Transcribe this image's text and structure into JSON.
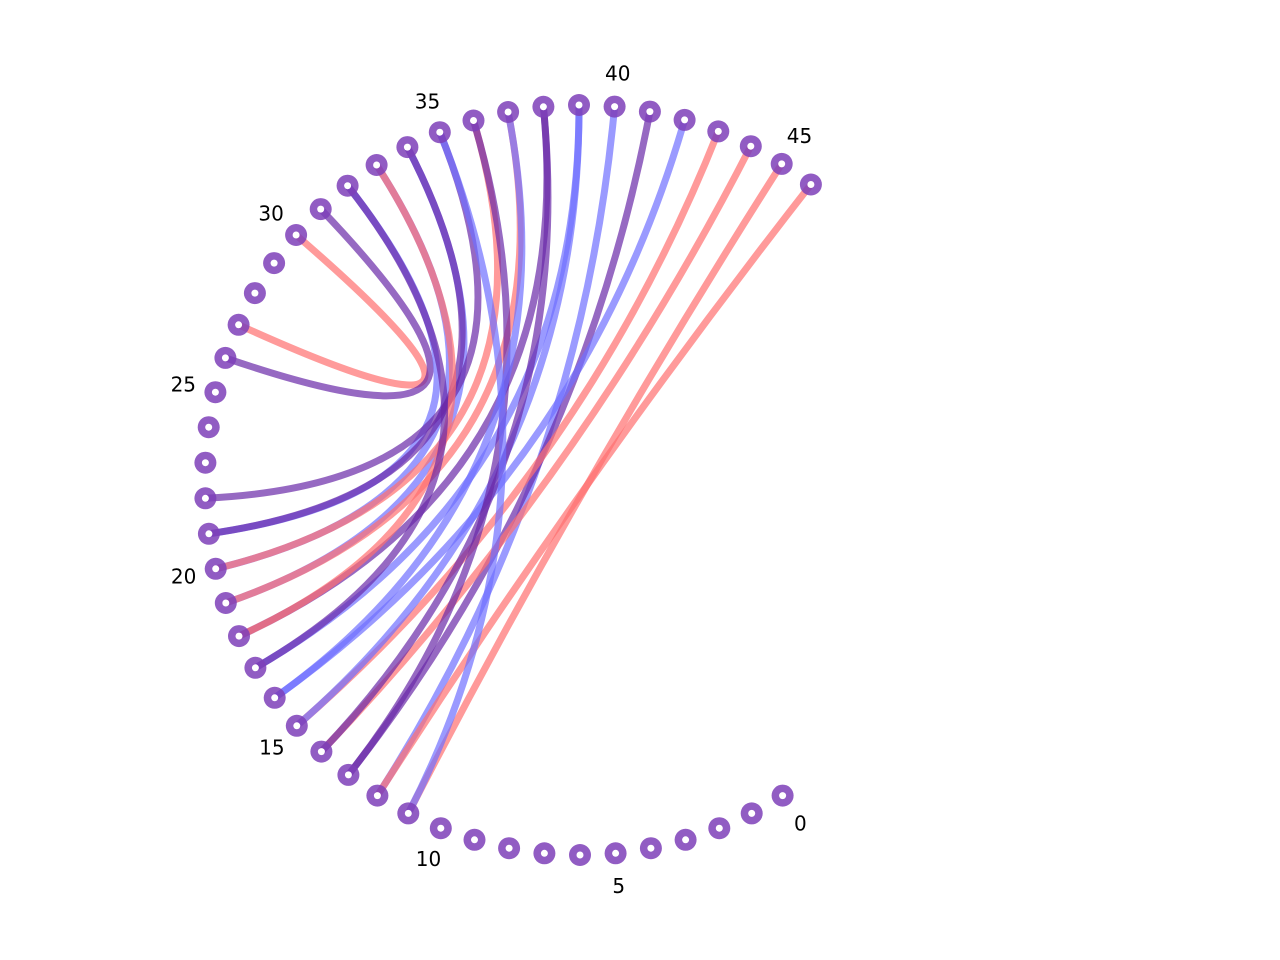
{
  "diagram": {
    "type": "arc-diagram",
    "node_count": 47,
    "tick_labels": [
      {
        "node": 0,
        "text": "0"
      },
      {
        "node": 5,
        "text": "5"
      },
      {
        "node": 10,
        "text": "10"
      },
      {
        "node": 15,
        "text": "15"
      },
      {
        "node": 20,
        "text": "20"
      },
      {
        "node": 25,
        "text": "25"
      },
      {
        "node": 30,
        "text": "30"
      },
      {
        "node": 35,
        "text": "35"
      },
      {
        "node": 40,
        "text": "40"
      },
      {
        "node": 45,
        "text": "45"
      }
    ],
    "colors": {
      "node": "#7e3fb8",
      "red": "#ff6f6f",
      "blue": "#6f6fff",
      "purple": "#6a2aa8"
    },
    "links": [
      {
        "source": 30,
        "target": 27,
        "color": "red"
      },
      {
        "source": 26,
        "target": 31,
        "color": "purple"
      },
      {
        "source": 32,
        "target": 21,
        "color": "blue"
      },
      {
        "source": 33,
        "target": 20,
        "color": "blue"
      },
      {
        "source": 34,
        "target": 19,
        "color": "blue"
      },
      {
        "source": 35,
        "target": 22,
        "color": "purple"
      },
      {
        "source": 36,
        "target": 20,
        "color": "red"
      },
      {
        "source": 37,
        "target": 19,
        "color": "red"
      },
      {
        "source": 38,
        "target": 18,
        "color": "purple"
      },
      {
        "source": 39,
        "target": 17,
        "color": "blue"
      },
      {
        "source": 40,
        "target": 12,
        "color": "blue"
      },
      {
        "source": 41,
        "target": 13,
        "color": "purple"
      },
      {
        "source": 42,
        "target": 16,
        "color": "blue"
      },
      {
        "source": 43,
        "target": 15,
        "color": "red"
      },
      {
        "source": 44,
        "target": 14,
        "color": "red"
      },
      {
        "source": 45,
        "target": 11,
        "color": "red"
      },
      {
        "source": 46,
        "target": 12,
        "color": "red"
      },
      {
        "source": 15,
        "target": 39,
        "color": "blue"
      },
      {
        "source": 14,
        "target": 38,
        "color": "purple"
      },
      {
        "source": 13,
        "target": 36,
        "color": "purple"
      },
      {
        "source": 11,
        "target": 35,
        "color": "blue"
      },
      {
        "source": 21,
        "target": 34,
        "color": "purple"
      },
      {
        "source": 18,
        "target": 33,
        "color": "red"
      },
      {
        "source": 17,
        "target": 32,
        "color": "purple"
      },
      {
        "source": 16,
        "target": 37,
        "color": "blue"
      }
    ]
  }
}
